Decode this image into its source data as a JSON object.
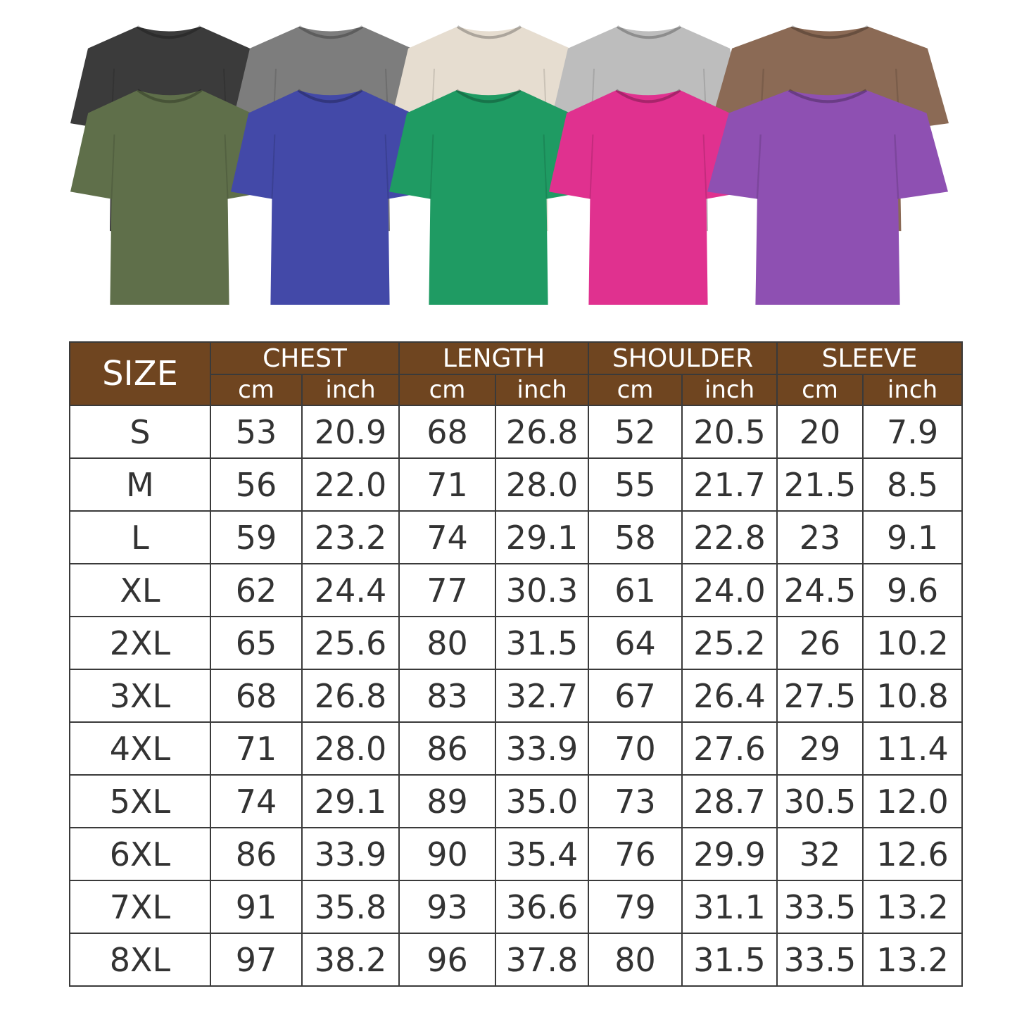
{
  "shirts": {
    "back_row": [
      {
        "color": "#3b3b3b",
        "name": "black"
      },
      {
        "color": "#7d7d7d",
        "name": "gray"
      },
      {
        "color": "#e6ddd0",
        "name": "cream"
      },
      {
        "color": "#bdbdbd",
        "name": "light-gray"
      },
      {
        "color": "#8b6a55",
        "name": "brown"
      }
    ],
    "front_row": [
      {
        "color": "#5f6f4a",
        "name": "olive"
      },
      {
        "color": "#4349a8",
        "name": "blue"
      },
      {
        "color": "#1f9b63",
        "name": "green"
      },
      {
        "color": "#e0318f",
        "name": "pink"
      },
      {
        "color": "#8e50b2",
        "name": "purple"
      }
    ]
  },
  "table": {
    "header_color": "#6f4520",
    "size_label": "SIZE",
    "groups": [
      "CHEST",
      "LENGTH",
      "SHOULDER",
      "SLEEVE"
    ],
    "units": [
      "cm",
      "inch"
    ],
    "rows": [
      [
        "S",
        "53",
        "20.9",
        "68",
        "26.8",
        "52",
        "20.5",
        "20",
        "7.9"
      ],
      [
        "M",
        "56",
        "22.0",
        "71",
        "28.0",
        "55",
        "21.7",
        "21.5",
        "8.5"
      ],
      [
        "L",
        "59",
        "23.2",
        "74",
        "29.1",
        "58",
        "22.8",
        "23",
        "9.1"
      ],
      [
        "XL",
        "62",
        "24.4",
        "77",
        "30.3",
        "61",
        "24.0",
        "24.5",
        "9.6"
      ],
      [
        "2XL",
        "65",
        "25.6",
        "80",
        "31.5",
        "64",
        "25.2",
        "26",
        "10.2"
      ],
      [
        "3XL",
        "68",
        "26.8",
        "83",
        "32.7",
        "67",
        "26.4",
        "27.5",
        "10.8"
      ],
      [
        "4XL",
        "71",
        "28.0",
        "86",
        "33.9",
        "70",
        "27.6",
        "29",
        "11.4"
      ],
      [
        "5XL",
        "74",
        "29.1",
        "89",
        "35.0",
        "73",
        "28.7",
        "30.5",
        "12.0"
      ],
      [
        "6XL",
        "86",
        "33.9",
        "90",
        "35.4",
        "76",
        "29.9",
        "32",
        "12.6"
      ],
      [
        "7XL",
        "91",
        "35.8",
        "93",
        "36.6",
        "79",
        "31.1",
        "33.5",
        "13.2"
      ],
      [
        "8XL",
        "97",
        "38.2",
        "96",
        "37.8",
        "80",
        "31.5",
        "33.5",
        "13.2"
      ]
    ]
  }
}
